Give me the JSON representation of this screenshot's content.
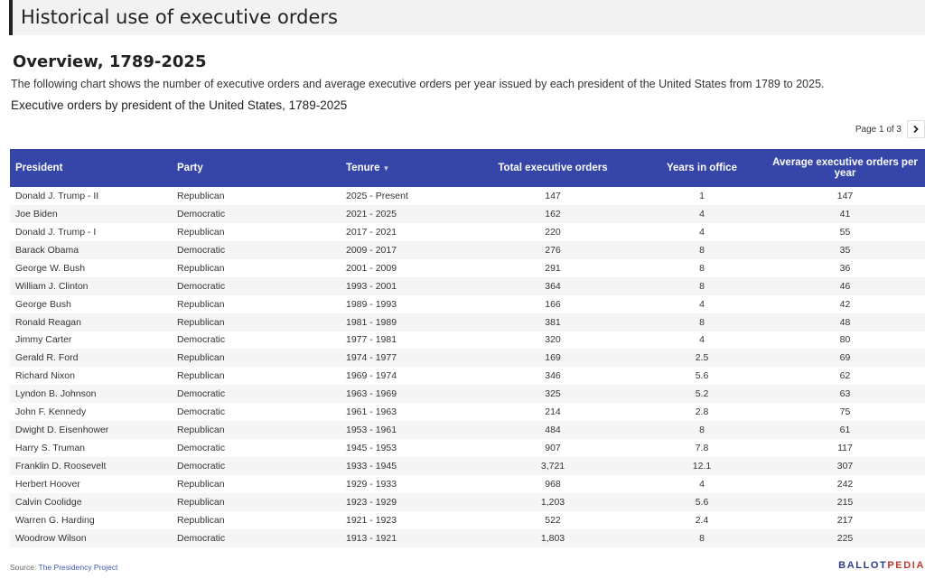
{
  "header": {
    "title": "Historical use of executive orders"
  },
  "overview": {
    "title": "Overview, 1789-2025",
    "intro": "The following chart shows the number of executive orders and average executive orders per year issued by each president of the United States from 1789 to 2025.",
    "chart_title": "Executive orders by president of the United States, 1789-2025"
  },
  "pager": {
    "label": "Page 1 of 3",
    "next_icon": "chevron-right-icon"
  },
  "table": {
    "columns": [
      "President",
      "Party",
      "Tenure",
      "Total executive orders",
      "Years in office",
      "Average executive orders per year"
    ],
    "sort_indicator": "▼",
    "rows": [
      [
        "Donald J. Trump - II",
        "Republican",
        "2025 - Present",
        "147",
        "1",
        "147"
      ],
      [
        "Joe Biden",
        "Democratic",
        "2021 - 2025",
        "162",
        "4",
        "41"
      ],
      [
        "Donald J. Trump - I",
        "Republican",
        "2017 - 2021",
        "220",
        "4",
        "55"
      ],
      [
        "Barack Obama",
        "Democratic",
        "2009 - 2017",
        "276",
        "8",
        "35"
      ],
      [
        "George W. Bush",
        "Republican",
        "2001 - 2009",
        "291",
        "8",
        "36"
      ],
      [
        "William J. Clinton",
        "Democratic",
        "1993 - 2001",
        "364",
        "8",
        "46"
      ],
      [
        "George Bush",
        "Republican",
        "1989 - 1993",
        "166",
        "4",
        "42"
      ],
      [
        "Ronald Reagan",
        "Republican",
        "1981 - 1989",
        "381",
        "8",
        "48"
      ],
      [
        "Jimmy Carter",
        "Democratic",
        "1977 - 1981",
        "320",
        "4",
        "80"
      ],
      [
        "Gerald R. Ford",
        "Republican",
        "1974 - 1977",
        "169",
        "2.5",
        "69"
      ],
      [
        "Richard Nixon",
        "Republican",
        "1969 - 1974",
        "346",
        "5.6",
        "62"
      ],
      [
        "Lyndon B. Johnson",
        "Democratic",
        "1963 - 1969",
        "325",
        "5.2",
        "63"
      ],
      [
        "John F. Kennedy",
        "Democratic",
        "1961 - 1963",
        "214",
        "2.8",
        "75"
      ],
      [
        "Dwight D. Eisenhower",
        "Republican",
        "1953 - 1961",
        "484",
        "8",
        "61"
      ],
      [
        "Harry S. Truman",
        "Democratic",
        "1945 - 1953",
        "907",
        "7.8",
        "117"
      ],
      [
        "Franklin D. Roosevelt",
        "Democratic",
        "1933 - 1945",
        "3,721",
        "12.1",
        "307"
      ],
      [
        "Herbert Hoover",
        "Republican",
        "1929 - 1933",
        "968",
        "4",
        "242"
      ],
      [
        "Calvin Coolidge",
        "Republican",
        "1923 - 1929",
        "1,203",
        "5.6",
        "215"
      ],
      [
        "Warren G. Harding",
        "Republican",
        "1921 - 1923",
        "522",
        "2.4",
        "217"
      ],
      [
        "Woodrow Wilson",
        "Democratic",
        "1913 - 1921",
        "1,803",
        "8",
        "225"
      ]
    ]
  },
  "footer": {
    "source_label": "Source: ",
    "source_link": "The Presidency Project",
    "logo_part1": "BALLOT",
    "logo_part2": "PEDIA"
  },
  "colors": {
    "header_bg": "#3545a8",
    "link": "#3d5ab3",
    "logo": "#2c3b8c",
    "logo_accent": "#c0392b"
  }
}
